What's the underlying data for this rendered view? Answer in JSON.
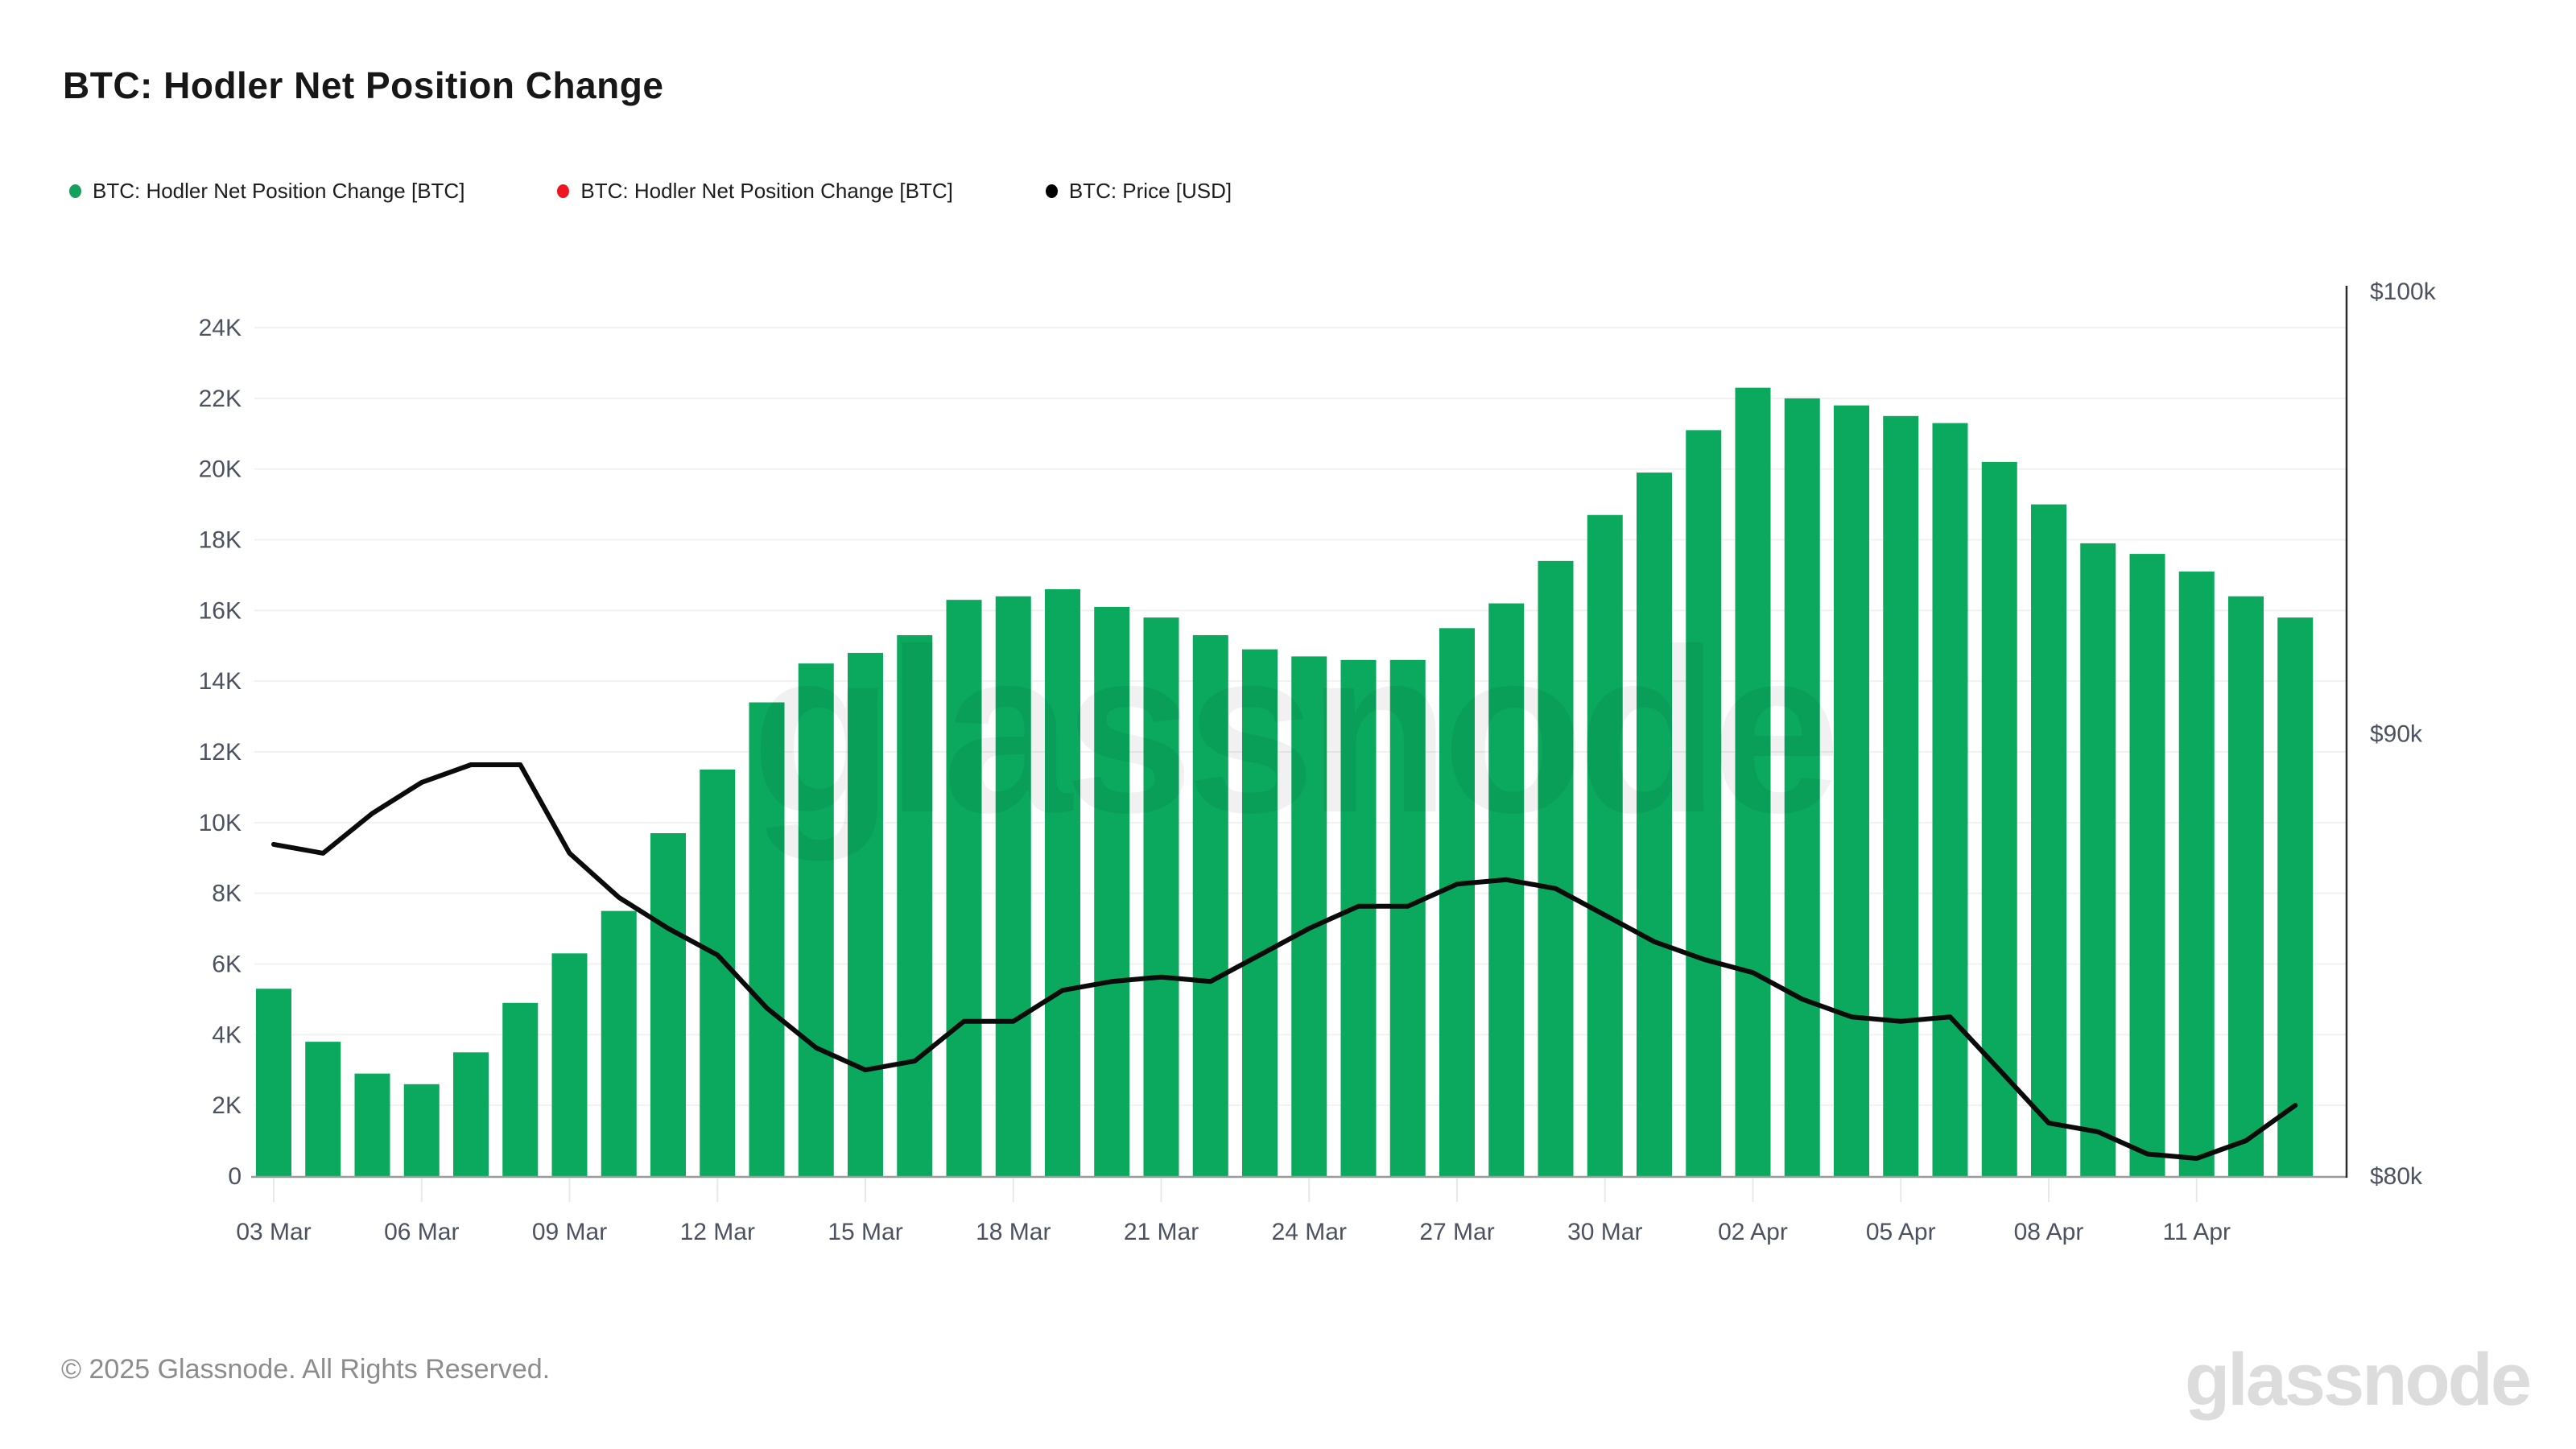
{
  "page": {
    "title": "BTC: Hodler Net Position Change"
  },
  "legend": [
    {
      "label": "BTC: Hodler Net Position Change [BTC]",
      "color": "#17a05d",
      "marker": "dot-icon"
    },
    {
      "label": "BTC: Hodler Net Position Change [BTC]",
      "color": "#f01420",
      "marker": "dot-icon"
    },
    {
      "label": "BTC: Price [USD]",
      "color": "#000000",
      "marker": "dot-icon"
    }
  ],
  "watermark": "glassnode",
  "footer": {
    "copyright": "© 2025 Glassnode. All Rights Reserved.",
    "brand": "glassnode"
  },
  "colors": {
    "bar_green": "#0aa95e",
    "price_line": "#0b0b0b",
    "axis_text": "#4c5260",
    "gridline": "#f1f1f1",
    "baseline": "#9a9a9a",
    "tick_mark": "#e8e8e8",
    "right_axis_line": "#2a2a2a"
  },
  "chart_data": {
    "type": "bar",
    "title": "BTC: Hodler Net Position Change",
    "categories": [
      "03 Mar",
      "04 Mar",
      "05 Mar",
      "06 Mar",
      "07 Mar",
      "08 Mar",
      "09 Mar",
      "10 Mar",
      "11 Mar",
      "12 Mar",
      "13 Mar",
      "14 Mar",
      "15 Mar",
      "16 Mar",
      "17 Mar",
      "18 Mar",
      "19 Mar",
      "20 Mar",
      "21 Mar",
      "22 Mar",
      "23 Mar",
      "24 Mar",
      "25 Mar",
      "26 Mar",
      "27 Mar",
      "28 Mar",
      "29 Mar",
      "30 Mar",
      "31 Mar",
      "01 Apr",
      "02 Apr",
      "03 Apr",
      "04 Apr",
      "05 Apr",
      "06 Apr",
      "07 Apr",
      "08 Apr",
      "09 Apr",
      "10 Apr",
      "11 Apr",
      "12 Apr",
      "13 Apr"
    ],
    "series": [
      {
        "name": "BTC: Hodler Net Position Change [BTC]",
        "type": "bar",
        "axis": "left",
        "values": [
          5300,
          3800,
          2900,
          2600,
          3500,
          4900,
          6300,
          7500,
          9700,
          11500,
          13400,
          14500,
          14800,
          15300,
          16300,
          16400,
          16600,
          16100,
          15800,
          15300,
          14900,
          14700,
          14600,
          14600,
          15500,
          16200,
          17400,
          18700,
          19900,
          21100,
          22300,
          22000,
          21800,
          21500,
          21300,
          20200,
          19000,
          17900,
          17600,
          17100,
          16400,
          15800
        ]
      },
      {
        "name": "BTC: Price [USD]",
        "type": "line",
        "axis": "right",
        "values": [
          87500,
          87300,
          88200,
          88900,
          89300,
          89300,
          87300,
          86300,
          85600,
          85000,
          83800,
          82900,
          82400,
          82600,
          83500,
          83500,
          84200,
          84400,
          84500,
          84400,
          85000,
          85600,
          86100,
          86100,
          86600,
          86700,
          86500,
          85900,
          85300,
          84900,
          84600,
          84000,
          83600,
          83500,
          83600,
          82400,
          81200,
          81000,
          80500,
          80400,
          80800,
          81600
        ]
      }
    ],
    "left_axis": {
      "min": 0,
      "max": 24000,
      "tick_step": 2000,
      "ticks": [
        "0",
        "2K",
        "4K",
        "6K",
        "8K",
        "10K",
        "12K",
        "14K",
        "16K",
        "18K",
        "20K",
        "22K",
        "24K"
      ]
    },
    "right_axis": {
      "min": 80000,
      "max": 100000,
      "ticks": [
        "$80k",
        "$90k",
        "$100k"
      ],
      "tick_values": [
        80000,
        90000,
        100000
      ]
    },
    "x_tick_every": 3,
    "x_tick_labels": [
      "03 Mar",
      "06 Mar",
      "09 Mar",
      "12 Mar",
      "15 Mar",
      "18 Mar",
      "21 Mar",
      "24 Mar",
      "27 Mar",
      "30 Mar",
      "02 Apr",
      "05 Apr",
      "08 Apr",
      "11 Apr"
    ],
    "grid": true,
    "legend_position": "top-left"
  }
}
